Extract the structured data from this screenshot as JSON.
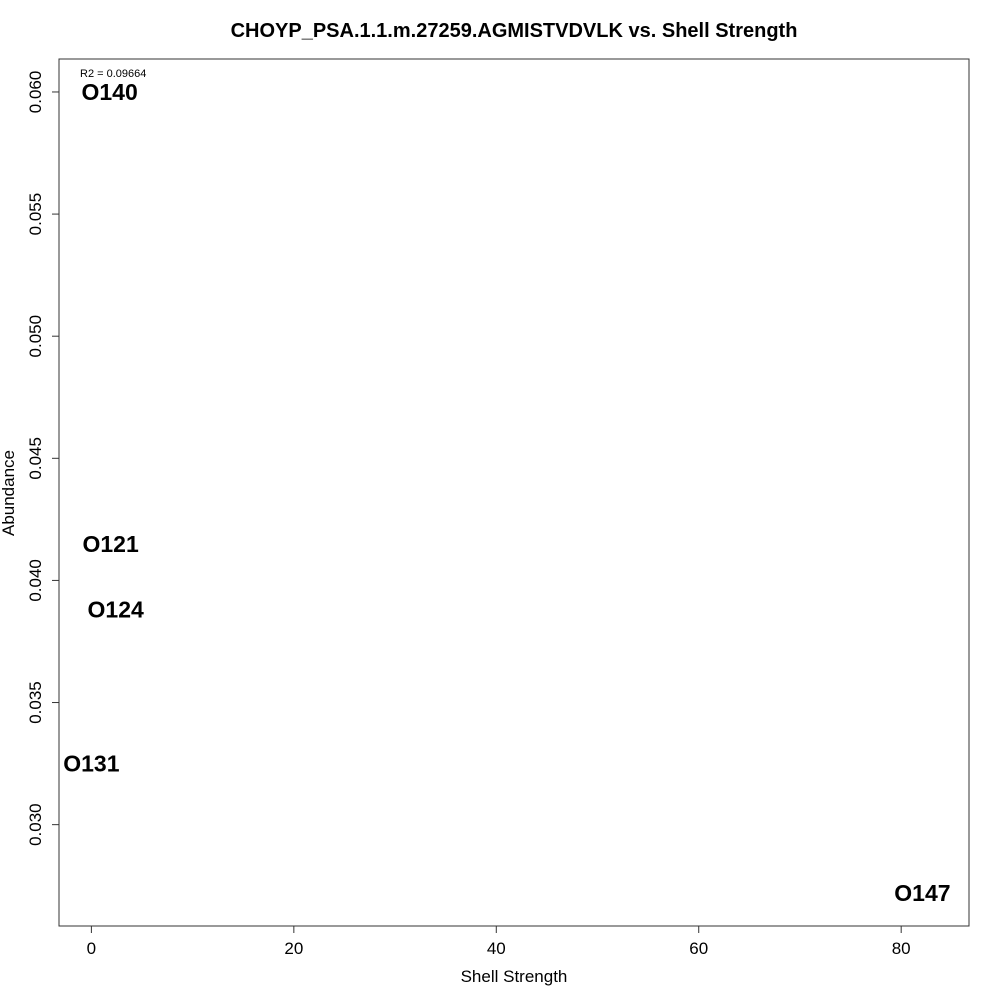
{
  "chart_data": {
    "type": "scatter",
    "title": "CHOYP_PSA.1.1.m.27259.AGMISTVDVLK vs. Shell Strength",
    "xlabel": "Shell Strength",
    "ylabel": "Abundance",
    "annotation": "R2 = 0.09664",
    "xlim": [
      -3.2,
      86.7
    ],
    "ylim": [
      0.02585,
      0.06135
    ],
    "x_ticks": [
      0,
      20,
      40,
      60,
      80
    ],
    "x_tick_labels": [
      "0",
      "20",
      "40",
      "60",
      "80"
    ],
    "y_ticks": [
      0.03,
      0.035,
      0.04,
      0.045,
      0.05,
      0.055,
      0.06
    ],
    "y_tick_labels": [
      "0.030",
      "0.035",
      "0.040",
      "0.045",
      "0.050",
      "0.055",
      "0.060"
    ],
    "grid": false,
    "points": [
      {
        "label": "O140",
        "x": 1.8,
        "y": 0.06
      },
      {
        "label": "O121",
        "x": 1.9,
        "y": 0.0415
      },
      {
        "label": "O124",
        "x": 2.4,
        "y": 0.0388
      },
      {
        "label": "O131",
        "x": 0.0,
        "y": 0.0325
      },
      {
        "label": "O147",
        "x": 82.1,
        "y": 0.0272
      }
    ]
  }
}
